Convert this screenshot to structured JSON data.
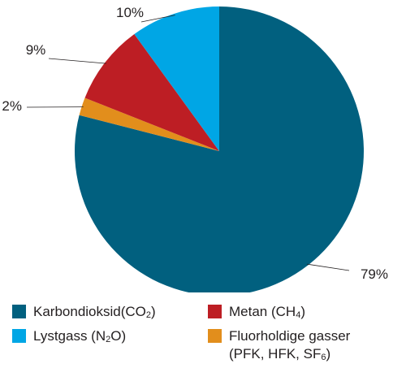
{
  "chart_data": {
    "type": "pie",
    "slices": [
      {
        "name": "Karbondioksid(CO2)",
        "label": "79%",
        "value": 79,
        "color": "#01607f"
      },
      {
        "name": "Fluorholdige gasser (PFK, HFK, SF6)",
        "label": "2%",
        "value": 2,
        "color": "#e28e1c"
      },
      {
        "name": "Metan (CH4)",
        "label": "9%",
        "value": 9,
        "color": "#bd1e24"
      },
      {
        "name": "Lystgass (N2O)",
        "label": "10%",
        "value": 10,
        "color": "#00a6e5"
      }
    ],
    "legend": {
      "placement": "bottom",
      "co2": {
        "text": "Karbondioksid(CO",
        "sub": "2",
        "tail": ")"
      },
      "ch4": {
        "text": "Metan (CH",
        "sub": "4",
        "tail": ")"
      },
      "n2o": {
        "text": "Lystgass (N",
        "sub": "2",
        "tail": "O)"
      },
      "f_line1": "Fluorholdige gasser",
      "f_line2": {
        "text": "(PFK, HFK, SF",
        "sub": "6",
        "tail": ")"
      }
    }
  }
}
